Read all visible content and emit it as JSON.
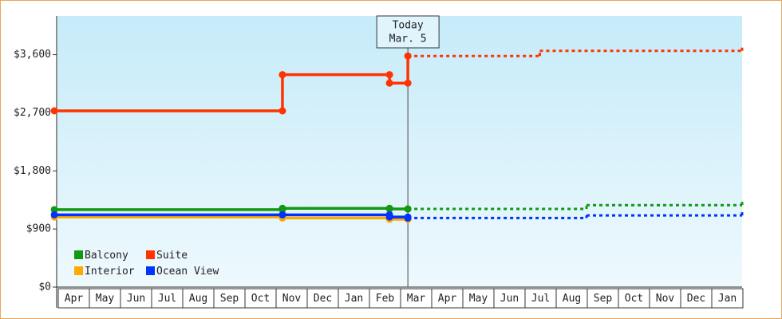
{
  "chart_data": {
    "type": "step-line",
    "categories": [
      "Apr",
      "May",
      "Jun",
      "Jul",
      "Aug",
      "Sep",
      "Oct",
      "Nov",
      "Dec",
      "Jan",
      "Feb",
      "Mar",
      "Apr",
      "May",
      "Jun",
      "Jul",
      "Aug",
      "Sep",
      "Oct",
      "Nov",
      "Dec",
      "Jan"
    ],
    "xlim": [
      0,
      22
    ],
    "ylim": [
      0,
      4200
    ],
    "yticks": [
      {
        "value": 0,
        "label": "$0"
      },
      {
        "value": 900,
        "label": "$900"
      },
      {
        "value": 1800,
        "label": "$1,800"
      },
      {
        "value": 2700,
        "label": "$2,700"
      },
      {
        "value": 3600,
        "label": "$3,600"
      }
    ],
    "annotation": {
      "x": 11.26,
      "lines": [
        "Today",
        "Mar. 5"
      ]
    },
    "series": [
      {
        "name": "Balcony",
        "color": "#119911",
        "x": [
          -0.1,
          7.23,
          10.67,
          11.26,
          17,
          22
        ],
        "values": [
          1200,
          1220,
          1210,
          1210,
          1270,
          1330
        ]
      },
      {
        "name": "Suite",
        "color": "#ff3300",
        "x": [
          -0.1,
          7.23,
          10.67,
          11.26,
          15.5,
          22
        ],
        "values": [
          2730,
          3290,
          3160,
          3580,
          3660,
          3740
        ]
      },
      {
        "name": "Interior",
        "color": "#ffaa00",
        "x": [
          -0.1,
          7.23,
          10.67,
          11.26
        ],
        "values": [
          1085,
          1070,
          1050,
          1050
        ]
      },
      {
        "name": "Ocean View",
        "color": "#0033ff",
        "x": [
          -0.1,
          7.23,
          10.67,
          11.26,
          17,
          22
        ],
        "values": [
          1120,
          1120,
          1085,
          1070,
          1110,
          1160
        ]
      }
    ]
  }
}
